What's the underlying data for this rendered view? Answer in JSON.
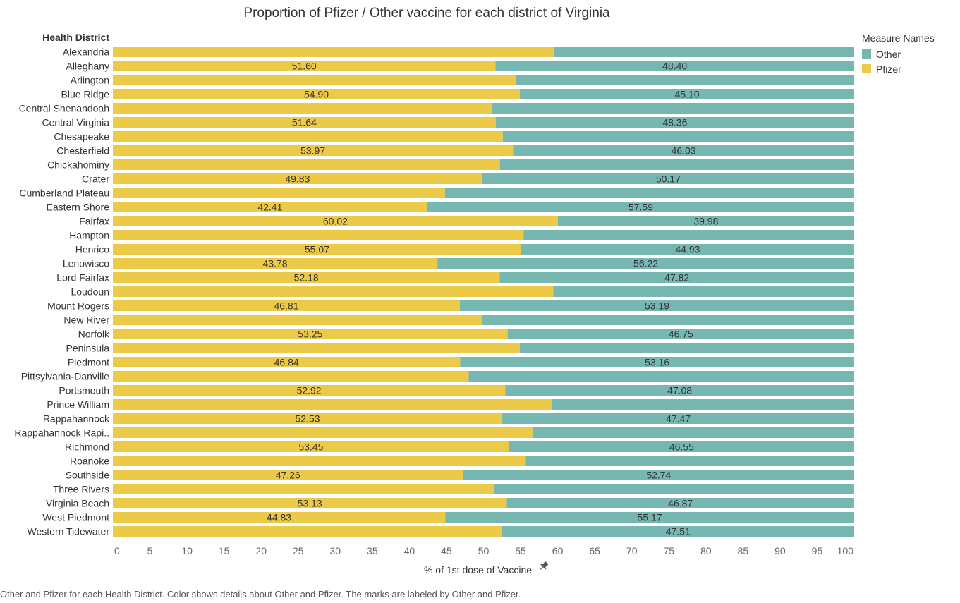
{
  "chart_data": {
    "type": "bar",
    "orientation": "horizontal",
    "stacked": true,
    "title": "Proportion of Pfizer / Other vaccine for each district of Virginia",
    "row_header": "Health District",
    "xlabel": "% of 1st dose of Vaccine",
    "xlabel_icon": "pin-icon",
    "xlim": [
      0,
      100
    ],
    "xticks": [
      0,
      5,
      10,
      15,
      20,
      25,
      30,
      35,
      40,
      45,
      50,
      55,
      60,
      65,
      70,
      75,
      80,
      85,
      90,
      95,
      100
    ],
    "legend": {
      "title": "Measure Names",
      "position": "right",
      "entries": [
        {
          "name": "Other",
          "color": "#76b7b2"
        },
        {
          "name": "Pfizer",
          "color": "#edc948"
        }
      ]
    },
    "categories": [
      "Alexandria",
      "Alleghany",
      "Arlington",
      "Blue Ridge",
      "Central Shenandoah",
      "Central Virginia",
      "Chesapeake",
      "Chesterfield",
      "Chickahominy",
      "Crater",
      "Cumberland Plateau",
      "Eastern Shore",
      "Fairfax",
      "Hampton",
      "Henrico",
      "Lenowisco",
      "Lord Fairfax",
      "Loudoun",
      "Mount Rogers",
      "New River",
      "Norfolk",
      "Peninsula",
      "Piedmont",
      "Pittsylvania-Danville",
      "Portsmouth",
      "Prince William",
      "Rappahannock",
      "Rappahannock Rapi..",
      "Richmond",
      "Roanoke",
      "Southside",
      "Three Rivers",
      "Virginia Beach",
      "West Piedmont",
      "Western Tidewater"
    ],
    "series": [
      {
        "name": "Pfizer",
        "color": "#edc948",
        "values": [
          59.5,
          51.6,
          54.4,
          54.9,
          51.1,
          51.64,
          52.6,
          53.97,
          52.2,
          49.83,
          44.8,
          42.41,
          60.02,
          55.4,
          55.07,
          43.78,
          52.18,
          59.4,
          46.81,
          49.8,
          53.25,
          54.9,
          46.84,
          48.0,
          52.92,
          59.2,
          52.53,
          56.6,
          53.45,
          55.7,
          47.26,
          51.4,
          53.13,
          44.83,
          52.49
        ],
        "labels": [
          null,
          "51.60",
          null,
          "54.90",
          null,
          "51.64",
          null,
          "53.97",
          null,
          "49.83",
          null,
          "42.41",
          "60.02",
          null,
          "55.07",
          "43.78",
          "52.18",
          null,
          "46.81",
          null,
          "53.25",
          null,
          "46.84",
          null,
          "52.92",
          null,
          "52.53",
          null,
          "53.45",
          null,
          "47.26",
          null,
          "53.13",
          "44.83",
          null
        ]
      },
      {
        "name": "Other",
        "color": "#76b7b2",
        "values": [
          40.5,
          48.4,
          45.6,
          45.1,
          48.9,
          48.36,
          47.4,
          46.03,
          47.8,
          50.17,
          55.2,
          57.59,
          39.98,
          44.6,
          44.93,
          56.22,
          47.82,
          40.6,
          53.19,
          50.2,
          46.75,
          45.1,
          53.16,
          52.0,
          47.08,
          40.8,
          47.47,
          43.4,
          46.55,
          44.3,
          52.74,
          48.6,
          46.87,
          55.17,
          47.51
        ],
        "labels": [
          null,
          "48.40",
          null,
          "45.10",
          null,
          "48.36",
          null,
          "46.03",
          null,
          "50.17",
          null,
          "57.59",
          "39.98",
          null,
          "44.93",
          "56.22",
          "47.82",
          null,
          "53.19",
          null,
          "46.75",
          null,
          "53.16",
          null,
          "47.08",
          null,
          "47.47",
          null,
          "46.55",
          null,
          "52.74",
          null,
          "46.87",
          "55.17",
          "47.51"
        ]
      }
    ],
    "grid": false
  },
  "caption": "Other and Pfizer for each Health District.  Color shows details about Other and Pfizer.  The marks are labeled by Other and Pfizer."
}
